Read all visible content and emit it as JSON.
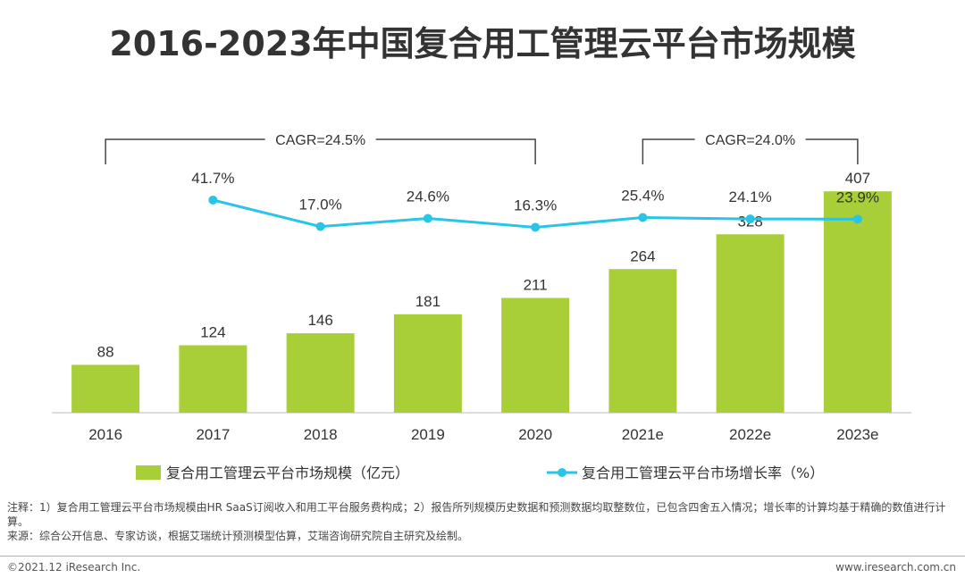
{
  "page": {
    "title": "2016-2023年中国复合用工管理云平台市场规模",
    "note_1": "注释：1）复合用工管理云平台市场规模由HR SaaS订阅收入和用工平台服务费构成；2）报告所列规模历史数据和预测数据均取整数位，已包含四舍五入情况；增长率的计算均基于精确的数值进行计算。",
    "note_2": "来源：综合公开信息、专家访谈，根据艾瑞统计预测模型估算，艾瑞咨询研究院自主研究及绘制。",
    "footer_left": "©2021.12 iResearch Inc.",
    "footer_right": "www.iresearch.com.cn"
  },
  "colors": {
    "bar": "#a9cf38",
    "line": "#29c4e6",
    "text": "#333333",
    "bracket": "#444444",
    "axis": "#bbbbbb"
  },
  "chart_data": {
    "type": "bar+line",
    "title": "2016-2023年中国复合用工管理云平台市场规模",
    "categories": [
      "2016",
      "2017",
      "2018",
      "2019",
      "2020",
      "2021e",
      "2022e",
      "2023e"
    ],
    "series": [
      {
        "name": "复合用工管理云平台市场规模（亿元）",
        "type": "bar",
        "values": [
          88,
          124,
          146,
          181,
          211,
          264,
          328,
          407
        ]
      },
      {
        "name": "复合用工管理云平台市场增长率（%）",
        "type": "line",
        "values": [
          null,
          41.7,
          17.0,
          24.6,
          16.3,
          25.4,
          24.1,
          23.9
        ],
        "labels": [
          "",
          "41.7%",
          "17.0%",
          "24.6%",
          "16.3%",
          "25.4%",
          "24.1%",
          "23.9%"
        ]
      }
    ],
    "bar_ylim": [
      0,
      450
    ],
    "annotations": [
      {
        "text": "CAGR=24.5%",
        "from": "2016",
        "to": "2020"
      },
      {
        "text": "CAGR=24.0%",
        "from": "2021e",
        "to": "2023e"
      }
    ],
    "legend": {
      "position": "bottom"
    }
  }
}
